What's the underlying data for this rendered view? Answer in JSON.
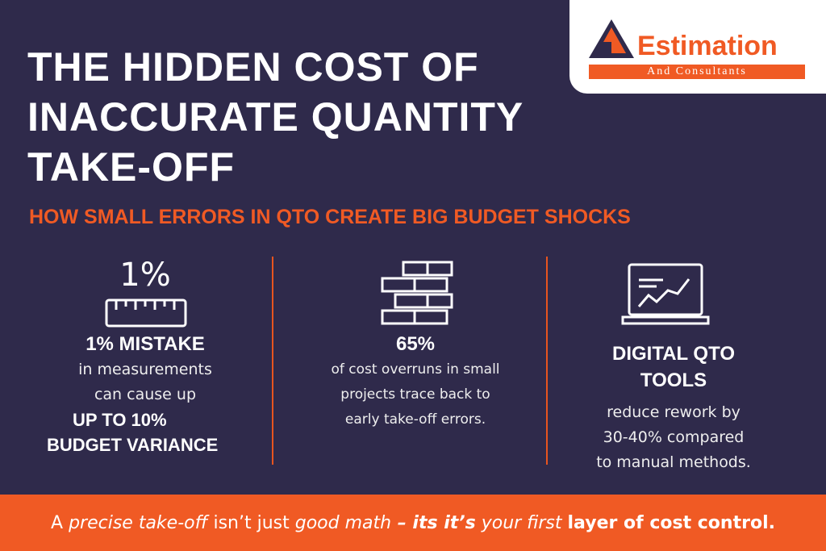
{
  "logo": {
    "name": "Estimation",
    "tagline": "And Consultants"
  },
  "title": [
    "THE HIDDEN COST OF",
    "INACCURATE QUANTITY",
    "TAKE-OFF"
  ],
  "subtitle": "HOW SMALL ERRORS IN QTO CREATE BIG BUDGET SHOCKS",
  "columns": [
    {
      "icon_text": "1%",
      "heading": [
        "1% MISTAKE"
      ],
      "body": [
        "in measurements",
        "can cause up"
      ],
      "emphasis": [
        "UP TO 10%",
        "BUDGET VARIANCE"
      ]
    },
    {
      "heading": [
        "65%"
      ],
      "body": [
        "of cost overruns in small",
        "projects trace back to",
        "early take-off errors."
      ]
    },
    {
      "heading": [
        "DIGITAL QTO",
        "TOOLS"
      ],
      "body": [
        "reduce rework by",
        "30-40% compared",
        "to manual methods."
      ]
    }
  ],
  "footer": [
    {
      "text": "A ",
      "style": "normal"
    },
    {
      "text": "precise take-off",
      "style": "italic"
    },
    {
      "text": " isn’t just ",
      "style": "normal"
    },
    {
      "text": "good math",
      "style": "italic"
    },
    {
      "text": " – its it’s",
      "style": "bold-italic"
    },
    {
      "text": " your first ",
      "style": "italic"
    },
    {
      "text": "layer of cost control.",
      "style": "bold"
    }
  ]
}
